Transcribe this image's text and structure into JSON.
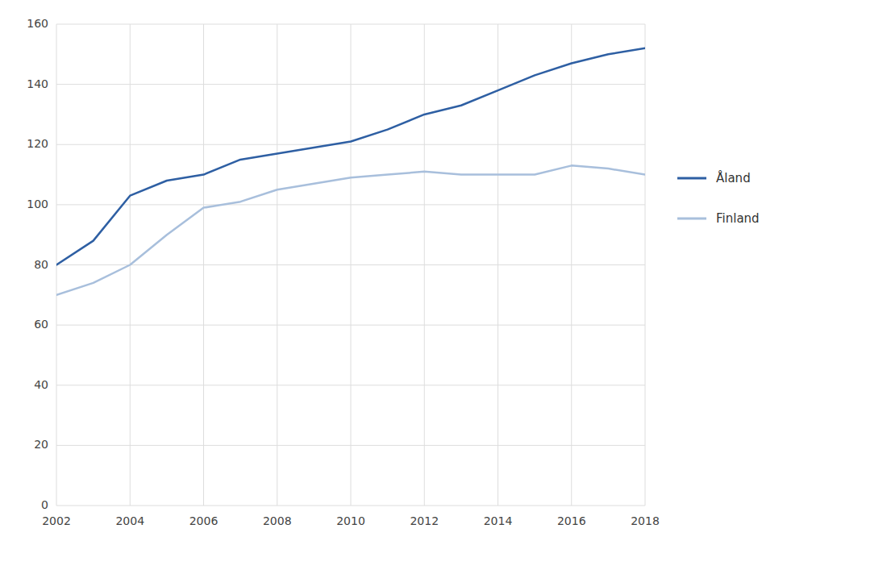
{
  "chart_data": {
    "type": "line",
    "x": [
      2002,
      2003,
      2004,
      2005,
      2006,
      2007,
      2008,
      2009,
      2010,
      2011,
      2012,
      2013,
      2014,
      2015,
      2016,
      2017,
      2018
    ],
    "series": [
      {
        "name": "Åland",
        "color": "#2E5FA3",
        "values": [
          80,
          88,
          103,
          108,
          110,
          115,
          117,
          119,
          121,
          125,
          130,
          133,
          138,
          143,
          147,
          150,
          152
        ]
      },
      {
        "name": "Finland",
        "color": "#A8BFDC",
        "values": [
          70,
          74,
          80,
          90,
          99,
          101,
          105,
          107,
          109,
          110,
          111,
          110,
          110,
          110,
          113,
          112,
          110
        ]
      }
    ],
    "xlim": [
      2002,
      2018
    ],
    "xticks": [
      2002,
      2004,
      2006,
      2008,
      2010,
      2012,
      2014,
      2016,
      2018
    ],
    "ylim": [
      0,
      160
    ],
    "yticks": [
      0,
      20,
      40,
      60,
      80,
      100,
      120,
      140,
      160
    ],
    "grid": true,
    "legend": "right"
  }
}
